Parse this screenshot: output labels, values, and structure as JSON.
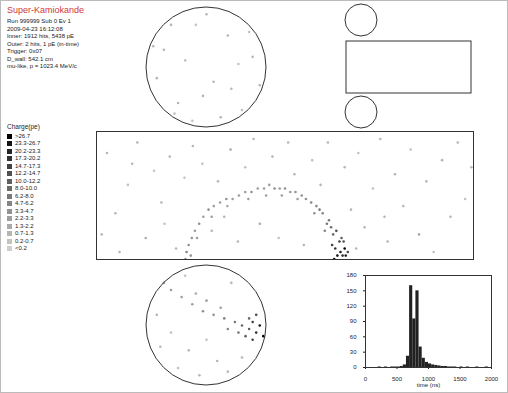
{
  "header": {
    "title": "Super-Kamiokande",
    "lines": [
      "Run 999999 Sub 0 Ev 1",
      "2009-04-23 16:12:08",
      "Inner: 1912 hits, 5438 pE",
      "Outer: 2 hits, 1 pE (in-time)",
      "Trigger: 0x07",
      "D_wall: 542.1 cm",
      "mu-like, p = 1023.4 MeV/c"
    ]
  },
  "charge_scale": {
    "title": "Charge(pe)",
    "labels": [
      ">26.7",
      "23.3-26.7",
      "20.2-23.3",
      "17.3-20.2",
      "14.7-17.3",
      "12.2-14.7",
      "10.0-12.2",
      "8.0-10.0",
      "6.2-8.0",
      "4.7-6.2",
      "3.3-4.7",
      "2.2-3.3",
      "1.3-2.2",
      "0.7-1.3",
      "0.2-0.7",
      "<0.2"
    ],
    "thresholds": [
      0.2,
      0.7,
      1.3,
      2.2,
      3.3,
      4.7,
      6.2,
      8.0,
      10.0,
      12.2,
      14.7,
      17.3,
      20.2,
      23.3,
      26.7
    ],
    "colors": [
      "#000000",
      "#141414",
      "#242424",
      "#333333",
      "#424242",
      "#505050",
      "#5e5e5e",
      "#6b6b6b",
      "#787878",
      "#858585",
      "#929292",
      "#9e9e9e",
      "#aaaaaa",
      "#b6b6b6",
      "#c2c2c2",
      "#cecece"
    ]
  },
  "display": {
    "barrel": {
      "xlim": [
        -180,
        180
      ],
      "ylim": [
        -18.1,
        18.1
      ],
      "tick_labels": false,
      "hits": [
        [
          55,
          -17,
          18.5
        ],
        [
          53,
          -16,
          22.1
        ],
        [
          57,
          -15,
          27.4
        ],
        [
          50,
          -17,
          24.0
        ],
        [
          48,
          -15,
          19.8
        ],
        [
          52,
          -13,
          15.2
        ],
        [
          54,
          -12,
          11.3
        ],
        [
          46,
          -11,
          9.6
        ],
        [
          49,
          -10,
          13.1
        ],
        [
          44,
          -9,
          8.4
        ],
        [
          42,
          -7,
          6.9
        ],
        [
          40,
          -8,
          7.5
        ],
        [
          36,
          -5,
          5.8
        ],
        [
          33,
          -4,
          6.3
        ],
        [
          30,
          -3,
          4.9
        ],
        [
          25,
          -2,
          5.2
        ],
        [
          20,
          -1,
          4.1
        ],
        [
          16,
          0,
          3.6
        ],
        [
          10,
          1,
          4.4
        ],
        [
          5,
          1,
          3.2
        ],
        [
          0,
          2,
          3.8
        ],
        [
          -5,
          2,
          2.9
        ],
        [
          -10,
          2,
          3.5
        ],
        [
          -15,
          3,
          2.7
        ],
        [
          -20,
          2,
          3.1
        ],
        [
          -26,
          2,
          2.8
        ],
        [
          -32,
          1,
          3.4
        ],
        [
          -38,
          1,
          2.6
        ],
        [
          -44,
          0,
          3.0
        ],
        [
          -50,
          -1,
          2.5
        ],
        [
          -56,
          -1,
          3.3
        ],
        [
          -62,
          -2,
          2.4
        ],
        [
          -68,
          -3,
          2.9
        ],
        [
          -73,
          -4,
          3.6
        ],
        [
          -78,
          -6,
          2.8
        ],
        [
          -82,
          -8,
          3.9
        ],
        [
          -86,
          -10,
          3.1
        ],
        [
          -89,
          -12,
          4.2
        ],
        [
          -92,
          -14,
          3.5
        ],
        [
          -94,
          -16,
          4.8
        ],
        [
          -95,
          -18,
          3.9
        ],
        [
          45,
          -14,
          16.7
        ],
        [
          47,
          -18,
          26.9
        ],
        [
          38,
          -10,
          6.1
        ],
        [
          28,
          -5,
          4.3
        ],
        [
          12,
          -1,
          3.0
        ],
        [
          -3,
          0,
          2.6
        ],
        [
          -18,
          0,
          2.2
        ],
        [
          -35,
          -1,
          2.5
        ],
        [
          -55,
          -3,
          2.1
        ],
        [
          -70,
          -6,
          2.7
        ],
        [
          -84,
          -12,
          3.0
        ],
        [
          -90,
          -17,
          3.3
        ],
        [
          58,
          -17,
          21.5
        ],
        [
          56,
          -13,
          14.0
        ],
        [
          60,
          -16,
          12.8
        ],
        [
          -170,
          12,
          0.8
        ],
        [
          -162,
          -5,
          1.1
        ],
        [
          -150,
          3,
          0.6
        ],
        [
          -141,
          15,
          0.9
        ],
        [
          -133,
          -12,
          1.4
        ],
        [
          -125,
          7,
          0.5
        ],
        [
          -118,
          -2,
          0.7
        ],
        [
          -110,
          11,
          1.0
        ],
        [
          -104,
          -15,
          0.8
        ],
        [
          -96,
          5,
          0.6
        ],
        [
          -88,
          14,
          1.2
        ],
        [
          -79,
          9,
          0.4
        ],
        [
          -70,
          -10,
          0.9
        ],
        [
          -64,
          4,
          0.7
        ],
        [
          -52,
          13,
          1.5
        ],
        [
          -45,
          -13,
          0.8
        ],
        [
          -38,
          8,
          0.6
        ],
        [
          -30,
          16,
          0.9
        ],
        [
          -24,
          -8,
          1.3
        ],
        [
          -12,
          11,
          0.7
        ],
        [
          -6,
          -12,
          0.5
        ],
        [
          3,
          15,
          0.8
        ],
        [
          9,
          6,
          1.1
        ],
        [
          18,
          -14,
          0.9
        ],
        [
          26,
          10,
          0.6
        ],
        [
          34,
          3,
          0.8
        ],
        [
          41,
          15,
          1.0
        ],
        [
          57,
          8,
          0.7
        ],
        [
          63,
          -4,
          1.2
        ],
        [
          70,
          12,
          0.5
        ],
        [
          76,
          -9,
          0.9
        ],
        [
          84,
          2,
          0.6
        ],
        [
          91,
          16,
          1.1
        ],
        [
          98,
          -13,
          0.8
        ],
        [
          105,
          6,
          0.7
        ],
        [
          113,
          -3,
          1.0
        ],
        [
          120,
          13,
          0.6
        ],
        [
          128,
          -11,
          1.3
        ],
        [
          135,
          4,
          0.8
        ],
        [
          142,
          -16,
          0.5
        ],
        [
          150,
          10,
          0.9
        ],
        [
          158,
          -6,
          0.7
        ],
        [
          165,
          15,
          1.2
        ],
        [
          172,
          -1,
          0.6
        ],
        [
          178,
          8,
          0.8
        ],
        [
          -158,
          -16,
          0.7
        ],
        [
          -146,
          9,
          1.0
        ],
        [
          -115,
          -8,
          0.6
        ],
        [
          -58,
          -6,
          0.8
        ],
        [
          68,
          -15,
          1.0
        ],
        [
          95,
          -6,
          0.7
        ],
        [
          -175,
          -11,
          0.9
        ]
      ]
    },
    "top_cap": {
      "xlim": [
        -16.9,
        16.9
      ],
      "ylim": [
        -16.9,
        16.9
      ],
      "tick_labels": false,
      "hits": [
        [
          -12,
          5,
          0.7
        ],
        [
          -8,
          -10,
          0.9
        ],
        [
          -3,
          12,
          0.6
        ],
        [
          2,
          -4,
          1.1
        ],
        [
          6,
          9,
          0.8
        ],
        [
          10,
          -12,
          0.5
        ],
        [
          13,
          3,
          0.7
        ],
        [
          -14,
          -3,
          1.0
        ],
        [
          -6,
          2,
          0.6
        ],
        [
          0,
          15,
          0.8
        ],
        [
          4,
          -14,
          0.9
        ],
        [
          9,
          1,
          0.5
        ],
        [
          -10,
          12,
          0.7
        ],
        [
          -1,
          -8,
          1.2
        ],
        [
          12,
          10,
          0.6
        ],
        [
          -15,
          6,
          0.8
        ],
        [
          7,
          -6,
          0.7
        ],
        [
          -4,
          -15,
          0.6
        ],
        [
          15,
          -5,
          0.9
        ],
        [
          -9,
          -13,
          0.5
        ]
      ]
    },
    "bottom_cap": {
      "xlim": [
        -16.9,
        16.9
      ],
      "ylim": [
        -16.9,
        16.9
      ],
      "tick_labels": false,
      "hits": [
        [
          -10,
          10,
          2.5
        ],
        [
          -7,
          8,
          2.8
        ],
        [
          -4,
          6,
          3.2
        ],
        [
          -1,
          4,
          3.6
        ],
        [
          2,
          3,
          4.1
        ],
        [
          5,
          2,
          5.0
        ],
        [
          8,
          1,
          6.4
        ],
        [
          10,
          0,
          8.8
        ],
        [
          12,
          -1,
          12.1
        ],
        [
          13,
          1,
          15.6
        ],
        [
          14,
          -2,
          19.3
        ],
        [
          15,
          0,
          24.7
        ],
        [
          13,
          -4,
          17.2
        ],
        [
          11,
          -3,
          10.5
        ],
        [
          14,
          3,
          13.8
        ],
        [
          16,
          -3,
          27.1
        ],
        [
          12,
          2,
          9.9
        ],
        [
          9,
          -2,
          7.2
        ],
        [
          6,
          -1,
          5.5
        ],
        [
          -12,
          12,
          2.2
        ],
        [
          -3,
          9,
          2.0
        ],
        [
          0,
          7,
          2.4
        ],
        [
          4,
          5,
          2.9
        ],
        [
          -13,
          -6,
          0.8
        ],
        [
          -8,
          -12,
          0.6
        ],
        [
          -2,
          -14,
          0.9
        ],
        [
          3,
          -10,
          0.7
        ],
        [
          -10,
          -2,
          0.5
        ],
        [
          -5,
          -7,
          1.0
        ],
        [
          0,
          -4,
          0.6
        ],
        [
          6,
          -13,
          0.8
        ],
        [
          -14,
          3,
          0.7
        ],
        [
          10,
          -9,
          0.9
        ],
        [
          -6,
          14,
          0.6
        ],
        [
          7,
          12,
          0.8
        ]
      ]
    }
  },
  "chart_data": {
    "type": "histogram",
    "xlabel": "time (ns)",
    "bins": [
      0,
      50,
      100,
      150,
      200,
      250,
      300,
      350,
      400,
      450,
      500,
      550,
      600,
      650,
      700,
      750,
      800,
      850,
      900,
      950,
      1000,
      1050,
      1100,
      1150,
      1200,
      1250,
      1300,
      1350,
      1400,
      1450,
      1500,
      1550,
      1600,
      1650,
      1700,
      1750,
      1800,
      1850,
      1900,
      1950,
      2000
    ],
    "counts": [
      0,
      0,
      0,
      0,
      1,
      0,
      1,
      0,
      1,
      1,
      1,
      2,
      5,
      22,
      160,
      95,
      150,
      40,
      18,
      10,
      7,
      5,
      4,
      3,
      2,
      2,
      1,
      1,
      1,
      0,
      1,
      0,
      1,
      0,
      0,
      1,
      0,
      0,
      1,
      0
    ],
    "color": "#222222",
    "xlim": [
      0,
      2000
    ],
    "xticks": [
      0,
      500,
      1000,
      1500,
      2000
    ],
    "ylim": [
      0,
      180
    ],
    "yticks": [
      0,
      30,
      60,
      90,
      120,
      150,
      180
    ]
  }
}
